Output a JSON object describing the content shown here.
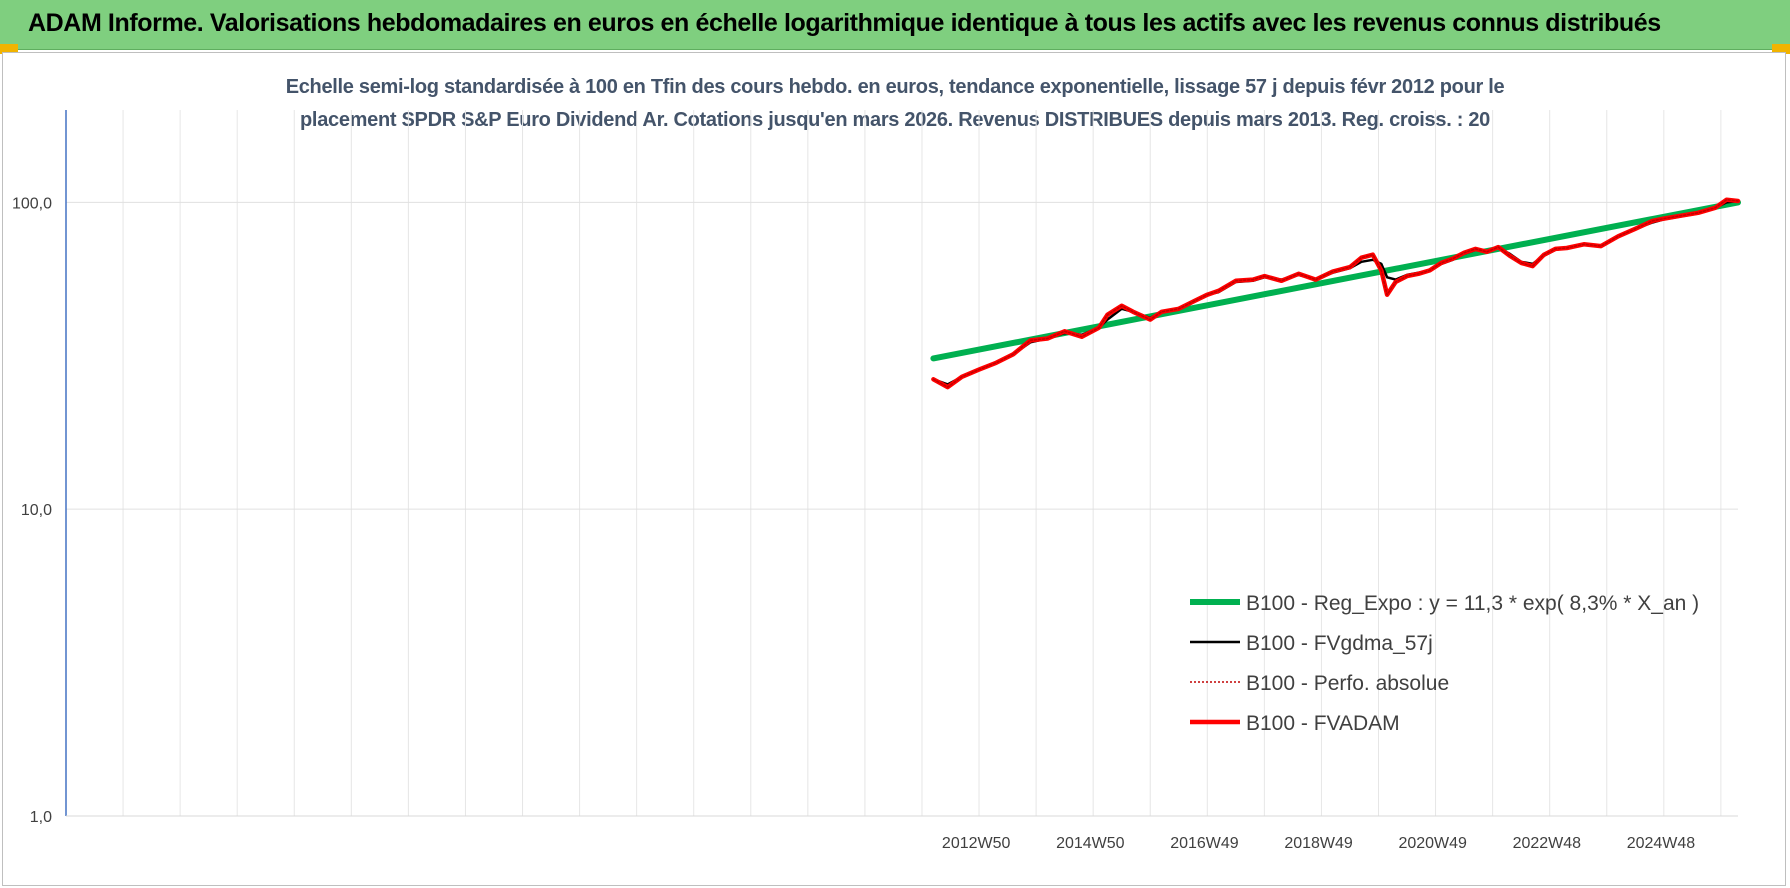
{
  "banner": {
    "title": "ADAM Informe. Valorisations hebdomadaires en euros en échelle logarithmique identique à tous les actifs avec les revenus connus distribués"
  },
  "colors": {
    "banner_bg": "#7fcf7f",
    "reg_expo": "#00b050",
    "fvgdma": "#000000",
    "perfo": "#c00000",
    "fvadam": "#ff0000"
  },
  "chart_data": {
    "type": "line",
    "title_line1": "Echelle semi-log standardisée à 100 en Tfin des cours hebdo. en euros, tendance exponentielle, lissage 57 j depuis févr 2012 pour le",
    "title_line2": "placement SPDR S&P Euro Dividend Ar. Cotations jusqu'en mars 2026. Revenus DISTRIBUES depuis mars 2013. Reg. croiss. : 20",
    "y_scale": "log",
    "ylim": [
      1,
      200
    ],
    "y_ticks": [
      {
        "value": 1,
        "label": "1,0"
      },
      {
        "value": 10,
        "label": "10,0"
      },
      {
        "value": 100,
        "label": "100,0"
      }
    ],
    "xlim": [
      1997.0,
      2026.3
    ],
    "x_ticks": [
      {
        "value": 2012.95,
        "label": "2012W50"
      },
      {
        "value": 2014.95,
        "label": "2014W50"
      },
      {
        "value": 2016.95,
        "label": "2016W49"
      },
      {
        "value": 2018.95,
        "label": "2018W49"
      },
      {
        "value": 2020.95,
        "label": "2020W49"
      },
      {
        "value": 2022.95,
        "label": "2022W48"
      },
      {
        "value": 2024.95,
        "label": "2024W48"
      }
    ],
    "grid": true,
    "legend_position": "bottom-right",
    "series": [
      {
        "key": "reg",
        "name": "B100 - Reg_Expo : y = 11,3 * exp( 8,3% *  X_an )",
        "style": "thick",
        "x": [
          2012.2,
          2026.3
        ],
        "y": [
          31,
          100
        ]
      },
      {
        "key": "fvgdma",
        "name": "B100 - FVgdma_57j",
        "style": "thin",
        "x": [
          2012.2,
          2012.45,
          2012.7,
          2013.0,
          2013.3,
          2013.6,
          2013.9,
          2014.2,
          2014.5,
          2014.8,
          2015.1,
          2015.25,
          2015.5,
          2015.7,
          2016.0,
          2016.2,
          2016.5,
          2016.8,
          2017.0,
          2017.2,
          2017.5,
          2017.8,
          2018.0,
          2018.3,
          2018.6,
          2018.9,
          2019.2,
          2019.5,
          2019.7,
          2019.9,
          2020.05,
          2020.15,
          2020.3,
          2020.5,
          2020.7,
          2020.9,
          2021.1,
          2021.3,
          2021.5,
          2021.7,
          2021.9,
          2022.1,
          2022.3,
          2022.5,
          2022.7,
          2022.9,
          2023.1,
          2023.3,
          2023.6,
          2023.9,
          2024.2,
          2024.5,
          2024.8,
          2025.0,
          2025.3,
          2025.6,
          2025.9,
          2026.1,
          2026.3
        ],
        "y": [
          26.5,
          25.5,
          27,
          28.5,
          30,
          32,
          35,
          36,
          37.5,
          37,
          39,
          41.5,
          45,
          44,
          42,
          44,
          45,
          48,
          50,
          51,
          55,
          55.5,
          57,
          56,
          58,
          56,
          59,
          61,
          64,
          65,
          63,
          57,
          56,
          58,
          59,
          60,
          63,
          65,
          68,
          70,
          69,
          71,
          68,
          64,
          63,
          67,
          70,
          71,
          73,
          72,
          77,
          82,
          86,
          88,
          90,
          92,
          96,
          100,
          101
        ]
      },
      {
        "key": "perfo",
        "name": "B100 - Perfo. absolue",
        "style": "dotted",
        "x": [
          2012.2,
          2012.45,
          2012.7,
          2013.0,
          2013.3,
          2013.6,
          2013.9,
          2014.2,
          2014.5,
          2014.8,
          2015.1,
          2015.25,
          2015.5,
          2015.7,
          2016.0,
          2016.2,
          2016.5,
          2016.8,
          2017.0,
          2017.2,
          2017.5,
          2017.8,
          2018.0,
          2018.3,
          2018.6,
          2018.9,
          2019.2,
          2019.5,
          2019.7,
          2019.9,
          2020.05,
          2020.15,
          2020.3,
          2020.5,
          2020.7,
          2020.9,
          2021.1,
          2021.3,
          2021.5,
          2021.7,
          2021.9,
          2022.1,
          2022.3,
          2022.5,
          2022.7,
          2022.9,
          2023.1,
          2023.3,
          2023.6,
          2023.9,
          2024.2,
          2024.5,
          2024.8,
          2025.0,
          2025.3,
          2025.6,
          2025.9,
          2026.1,
          2026.3
        ],
        "y": [
          26.5,
          25,
          27,
          28.5,
          30,
          32,
          35.5,
          36,
          38,
          36.5,
          39,
          43,
          46,
          44,
          41.5,
          44,
          45,
          48,
          50,
          51.5,
          55.5,
          56,
          57.5,
          55.5,
          58.5,
          56,
          59.5,
          61.5,
          66,
          67.5,
          60,
          50,
          55,
          57.5,
          58.5,
          60,
          63.5,
          65.5,
          68.5,
          70.5,
          69,
          71.5,
          67,
          63.5,
          62,
          67.5,
          70.5,
          71,
          73,
          72,
          77.5,
          82,
          87,
          88.5,
          90.5,
          92.5,
          96,
          102,
          101
        ]
      },
      {
        "key": "fvadam",
        "name": "B100 - FVADAM",
        "style": "thick",
        "x": [
          2012.2,
          2012.45,
          2012.7,
          2013.0,
          2013.3,
          2013.6,
          2013.9,
          2014.2,
          2014.5,
          2014.8,
          2015.1,
          2015.25,
          2015.5,
          2015.7,
          2016.0,
          2016.2,
          2016.5,
          2016.8,
          2017.0,
          2017.2,
          2017.5,
          2017.8,
          2018.0,
          2018.3,
          2018.6,
          2018.9,
          2019.2,
          2019.5,
          2019.7,
          2019.9,
          2020.05,
          2020.15,
          2020.3,
          2020.5,
          2020.7,
          2020.9,
          2021.1,
          2021.3,
          2021.5,
          2021.7,
          2021.9,
          2022.1,
          2022.3,
          2022.5,
          2022.7,
          2022.9,
          2023.1,
          2023.3,
          2023.6,
          2023.9,
          2024.2,
          2024.5,
          2024.8,
          2025.0,
          2025.3,
          2025.6,
          2025.9,
          2026.1,
          2026.3
        ],
        "y": [
          26.5,
          25,
          27,
          28.5,
          30,
          32,
          35.5,
          36,
          38,
          36.5,
          39,
          43,
          46,
          44,
          41.5,
          44,
          45,
          48,
          50,
          51.5,
          55.5,
          56,
          57.5,
          55.5,
          58.5,
          56,
          59.5,
          61.5,
          66,
          67.5,
          60,
          50,
          55,
          57.5,
          58.5,
          60,
          63.5,
          65.5,
          68.5,
          70.5,
          69,
          71.5,
          67,
          63.5,
          62,
          67.5,
          70.5,
          71,
          73,
          72,
          77.5,
          82,
          87,
          88.5,
          90.5,
          92.5,
          96,
          102,
          101
        ]
      }
    ]
  }
}
